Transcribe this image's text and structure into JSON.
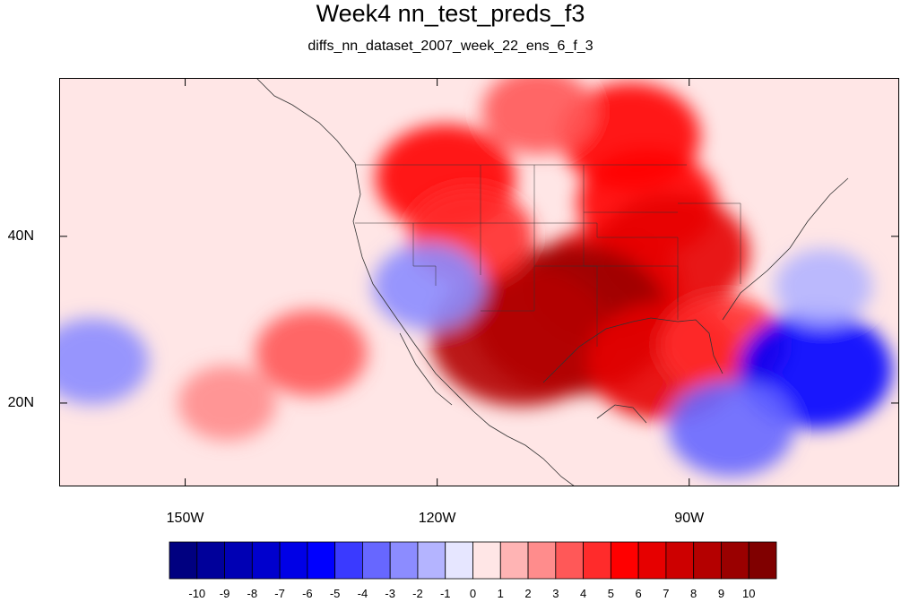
{
  "header": {
    "title": "Week4 nn_test_preds_f3",
    "subtitle": "diffs_nn_dataset_2007_week_22_ens_6_f_3"
  },
  "map": {
    "lon_labels": [
      {
        "value": -150,
        "text": "150W"
      },
      {
        "value": -120,
        "text": "120W"
      },
      {
        "value": -90,
        "text": "90W"
      }
    ],
    "lat_labels": [
      {
        "value": 40,
        "text": "40N"
      },
      {
        "value": 20,
        "text": "20N"
      }
    ],
    "anomalies": [
      {
        "lon": -97,
        "lat": 52,
        "value": 5
      },
      {
        "lon": -108,
        "lat": 55,
        "value": 3
      },
      {
        "lon": -95,
        "lat": 44,
        "value": 5
      },
      {
        "lon": -92,
        "lat": 38,
        "value": 6
      },
      {
        "lon": -100,
        "lat": 34,
        "value": 6
      },
      {
        "lon": -104,
        "lat": 30,
        "value": 9
      },
      {
        "lon": -110,
        "lat": 28,
        "value": 8
      },
      {
        "lon": -93,
        "lat": 25,
        "value": 6
      },
      {
        "lon": -86,
        "lat": 27,
        "value": 4
      },
      {
        "lon": -119,
        "lat": 47,
        "value": 5
      },
      {
        "lon": -116,
        "lat": 40,
        "value": 4
      },
      {
        "lon": -135,
        "lat": 26,
        "value": 3
      },
      {
        "lon": -145,
        "lat": 20,
        "value": 2
      },
      {
        "lon": -75,
        "lat": 24,
        "value": -6
      },
      {
        "lon": -85,
        "lat": 17,
        "value": -4
      },
      {
        "lon": -161,
        "lat": 25,
        "value": -3
      },
      {
        "lon": -121,
        "lat": 34,
        "value": -3
      },
      {
        "lon": -74,
        "lat": 34,
        "value": -2
      }
    ]
  },
  "colorbar": {
    "colors": [
      "#000080",
      "#00009a",
      "#0000b4",
      "#0000cd",
      "#0000e6",
      "#0000ff",
      "#3a3aff",
      "#6767ff",
      "#8c8cff",
      "#b4b4ff",
      "#e6e6ff",
      "#ffe6e6",
      "#ffb4b4",
      "#ff8c8c",
      "#ff5858",
      "#ff2b2b",
      "#ff0000",
      "#e60000",
      "#cd0000",
      "#b40000",
      "#9a0000",
      "#800000"
    ],
    "labels": [
      "-10",
      "-9",
      "-8",
      "-7",
      "-6",
      "-5",
      "-4",
      "-3",
      "-2",
      "-1",
      "0",
      "1",
      "2",
      "3",
      "4",
      "5",
      "6",
      "7",
      "8",
      "9",
      "10"
    ]
  }
}
